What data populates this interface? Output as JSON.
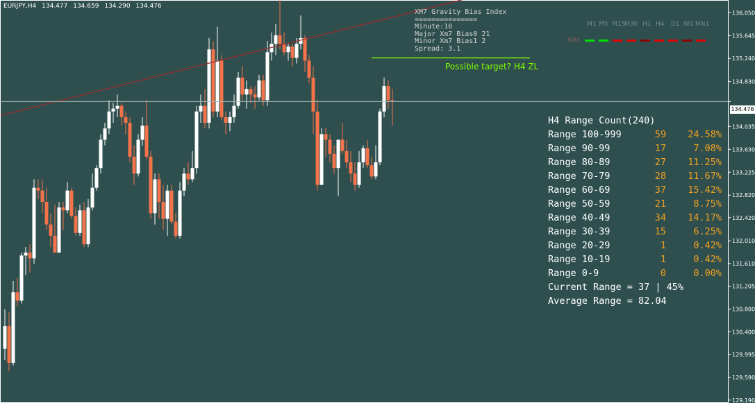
{
  "header": {
    "symbol": "EURJPY,H4",
    "open": "134.477",
    "high": "134.659",
    "low": "134.290",
    "close": "134.476"
  },
  "indicator": {
    "title": "XM7 Gravity Bias Index",
    "separator": "===============",
    "minute": "Minute:10",
    "major": "Major Xm7 Bias0 21",
    "minor": "Minor Xm7 Bias1 2",
    "spread": "Spread: 3.1"
  },
  "bias_panel": {
    "label": "BIAS",
    "timeframes": [
      "M1",
      "M5",
      "M15",
      "M30",
      "H1",
      "H4",
      "D1",
      "W1",
      "MN1"
    ],
    "colors": [
      "#00e000",
      "#00e000",
      "#e00000",
      "#e00000",
      "#8b0000",
      "#e00000",
      "#e00000",
      "#8b0000",
      "#e00000"
    ]
  },
  "annotation": {
    "target_text": "Possible target? H4 ZL",
    "color": "#7fff00"
  },
  "range_table": {
    "title": "H4 Range Count(240)",
    "rows": [
      {
        "label": "Range 100-999",
        "count": "59",
        "pct": "24.58%"
      },
      {
        "label": "Range 90-99",
        "count": "17",
        "pct": "7.08%"
      },
      {
        "label": "Range 80-89",
        "count": "27",
        "pct": "11.25%"
      },
      {
        "label": "Range 70-79",
        "count": "28",
        "pct": "11.67%"
      },
      {
        "label": "Range 60-69",
        "count": "37",
        "pct": "15.42%"
      },
      {
        "label": "Range 50-59",
        "count": "21",
        "pct": "8.75%"
      },
      {
        "label": "Range 40-49",
        "count": "34",
        "pct": "14.17%"
      },
      {
        "label": "Range 30-39",
        "count": "15",
        "pct": "6.25%"
      },
      {
        "label": "Range 20-29",
        "count": "1",
        "pct": "0.42%"
      },
      {
        "label": "Range 10-19",
        "count": "1",
        "pct": "0.42%"
      },
      {
        "label": "Range 0-9",
        "count": "0",
        "pct": "0.00%"
      }
    ],
    "current": "Current Range = 37 | 45%",
    "average": "Average Range = 82.04"
  },
  "chart_data": {
    "type": "candlestick",
    "symbol": "EURJPY",
    "timeframe": "H4",
    "current_price": "134.476",
    "ylim": [
      129.175,
      136.25
    ],
    "y_ticks": [
      "136.050",
      "135.645",
      "135.240",
      "134.830",
      "134.476",
      "134.035",
      "133.630",
      "133.225",
      "132.820",
      "132.420",
      "132.010",
      "131.610",
      "131.205",
      "130.800",
      "130.400",
      "129.995",
      "129.590",
      "129.190"
    ],
    "trendline": {
      "from": [
        -1,
        134.23
      ],
      "to": [
        120,
        136.47
      ],
      "color": "#a52a2a"
    },
    "target_line": {
      "from": [
        88,
        135.25
      ],
      "to": [
        126,
        135.25
      ]
    },
    "candles": [
      [
        130.1,
        130.8,
        129.9,
        130.5
      ],
      [
        130.5,
        130.75,
        129.7,
        129.85
      ],
      [
        129.85,
        131.3,
        129.8,
        131.1
      ],
      [
        131.1,
        131.35,
        130.85,
        130.95
      ],
      [
        130.95,
        131.8,
        130.9,
        131.75
      ],
      [
        131.75,
        131.9,
        131.4,
        131.8
      ],
      [
        131.8,
        131.95,
        131.45,
        131.7
      ],
      [
        131.7,
        133.1,
        131.6,
        132.95
      ],
      [
        132.95,
        133.1,
        132.75,
        132.9
      ],
      [
        132.9,
        133.1,
        132.5,
        132.7
      ],
      [
        132.7,
        132.95,
        132.2,
        132.3
      ],
      [
        132.3,
        132.5,
        131.9,
        132.1
      ],
      [
        132.1,
        132.65,
        131.8,
        131.8
      ],
      [
        131.8,
        132.7,
        131.8,
        132.6
      ],
      [
        132.6,
        132.7,
        132.2,
        132.55
      ],
      [
        132.55,
        133.05,
        132.5,
        132.9
      ],
      [
        132.9,
        132.95,
        132.4,
        132.45
      ],
      [
        132.45,
        132.6,
        132.1,
        132.15
      ],
      [
        132.15,
        132.65,
        132.1,
        132.55
      ],
      [
        132.55,
        132.7,
        131.9,
        131.95
      ],
      [
        131.95,
        132.75,
        131.9,
        132.6
      ],
      [
        132.6,
        133.2,
        132.55,
        132.95
      ],
      [
        132.95,
        133.35,
        132.9,
        133.3
      ],
      [
        133.3,
        133.9,
        133.2,
        133.8
      ],
      [
        133.8,
        134.1,
        133.7,
        134.0
      ],
      [
        134.0,
        134.5,
        133.9,
        134.3
      ],
      [
        134.3,
        134.45,
        134.1,
        134.35
      ],
      [
        134.35,
        134.6,
        134.2,
        134.4
      ],
      [
        134.4,
        134.45,
        134.05,
        134.2
      ],
      [
        134.2,
        134.3,
        133.9,
        134.1
      ],
      [
        134.1,
        134.2,
        133.4,
        133.5
      ],
      [
        133.5,
        133.7,
        133.0,
        133.2
      ],
      [
        133.2,
        133.9,
        133.15,
        133.8
      ],
      [
        133.8,
        134.2,
        133.7,
        134.05
      ],
      [
        134.05,
        134.5,
        133.45,
        133.5
      ],
      [
        133.5,
        133.6,
        132.4,
        132.5
      ],
      [
        132.5,
        133.2,
        132.3,
        133.1
      ],
      [
        133.1,
        133.2,
        132.4,
        132.7
      ],
      [
        132.7,
        133.0,
        132.2,
        132.4
      ],
      [
        132.4,
        133.0,
        132.1,
        132.9
      ],
      [
        132.9,
        133.0,
        132.3,
        132.35
      ],
      [
        132.35,
        132.5,
        132.05,
        132.1
      ],
      [
        132.1,
        133.05,
        132.05,
        132.9
      ],
      [
        132.9,
        133.3,
        132.8,
        133.2
      ],
      [
        133.2,
        133.4,
        133.0,
        133.1
      ],
      [
        133.1,
        133.6,
        133.05,
        133.3
      ],
      [
        133.3,
        134.4,
        133.2,
        134.3
      ],
      [
        134.3,
        134.6,
        134.1,
        134.4
      ],
      [
        134.4,
        134.7,
        134.0,
        134.1
      ],
      [
        134.1,
        135.6,
        134.0,
        135.4
      ],
      [
        135.4,
        135.55,
        134.2,
        134.3
      ],
      [
        134.3,
        135.8,
        134.2,
        135.2
      ],
      [
        135.2,
        135.3,
        134.15,
        134.2
      ],
      [
        134.2,
        134.3,
        133.9,
        134.1
      ],
      [
        134.1,
        134.3,
        133.95,
        134.2
      ],
      [
        134.2,
        134.6,
        134.1,
        134.4
      ],
      [
        134.4,
        135.0,
        134.35,
        134.9
      ],
      [
        134.9,
        135.1,
        134.5,
        134.6
      ],
      [
        134.6,
        134.85,
        134.35,
        134.7
      ],
      [
        134.7,
        134.75,
        134.45,
        134.6
      ],
      [
        134.6,
        134.75,
        134.35,
        134.55
      ],
      [
        134.55,
        134.95,
        134.5,
        134.85
      ],
      [
        134.85,
        134.95,
        134.4,
        134.5
      ],
      [
        134.5,
        135.55,
        134.4,
        135.35
      ],
      [
        135.35,
        135.7,
        135.2,
        135.5
      ],
      [
        135.5,
        135.85,
        135.3,
        135.65
      ],
      [
        135.65,
        136.3,
        135.4,
        135.5
      ],
      [
        135.5,
        135.7,
        135.3,
        135.35
      ],
      [
        135.35,
        135.5,
        135.2,
        135.45
      ],
      [
        135.45,
        135.5,
        135.1,
        135.25
      ],
      [
        135.25,
        135.6,
        135.15,
        135.5
      ],
      [
        135.5,
        136.0,
        135.4,
        135.6
      ],
      [
        135.6,
        135.65,
        135.0,
        135.2
      ],
      [
        135.2,
        135.3,
        134.8,
        134.9
      ],
      [
        134.9,
        135.1,
        133.9,
        134.3
      ],
      [
        134.3,
        134.5,
        132.9,
        133.0
      ],
      [
        133.0,
        134.0,
        133.0,
        133.9
      ],
      [
        133.9,
        134.0,
        133.5,
        133.8
      ],
      [
        133.8,
        133.9,
        133.4,
        133.55
      ],
      [
        133.55,
        133.7,
        133.2,
        133.3
      ],
      [
        133.3,
        133.8,
        132.8,
        133.8
      ],
      [
        133.8,
        134.1,
        133.55,
        133.6
      ],
      [
        133.6,
        133.8,
        133.3,
        133.4
      ],
      [
        133.4,
        133.6,
        133.05,
        133.2
      ],
      [
        133.2,
        133.4,
        132.9,
        133.0
      ],
      [
        133.0,
        133.6,
        132.95,
        133.4
      ],
      [
        133.4,
        133.7,
        133.3,
        133.65
      ],
      [
        133.65,
        133.8,
        133.3,
        133.35
      ],
      [
        133.35,
        133.5,
        133.1,
        133.15
      ],
      [
        133.15,
        133.7,
        133.1,
        133.4
      ],
      [
        133.4,
        134.35,
        133.35,
        134.3
      ],
      [
        134.3,
        134.9,
        134.2,
        134.75
      ],
      [
        134.75,
        134.85,
        134.35,
        134.5
      ],
      [
        134.5,
        134.7,
        134.05,
        134.48
      ]
    ]
  }
}
